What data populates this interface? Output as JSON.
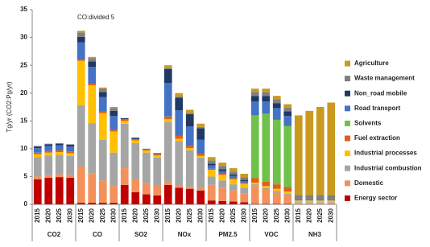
{
  "chart_data": {
    "type": "stacked_bar",
    "y_label": "Tg/yr (CO2:Pg/yr)",
    "annotation": "CO:divided 5",
    "ylim": [
      0,
      35
    ],
    "yticks": [
      0,
      5,
      10,
      15,
      20,
      25,
      30,
      35
    ],
    "groups": [
      {
        "name": "CO2",
        "categories": [
          "2015",
          "2020",
          "2025",
          "2030"
        ]
      },
      {
        "name": "CO",
        "categories": [
          "2015",
          "2020",
          "2025",
          "2030"
        ]
      },
      {
        "name": "SO2",
        "categories": [
          "2015",
          "2020",
          "2025",
          "2030"
        ]
      },
      {
        "name": "NOx",
        "categories": [
          "2015",
          "2020",
          "2025",
          "2030"
        ]
      },
      {
        "name": "PM2.5",
        "categories": [
          "2015",
          "2020",
          "2025",
          "2030"
        ]
      },
      {
        "name": "VOC",
        "categories": [
          "2015",
          "2020",
          "2025",
          "2030"
        ]
      },
      {
        "name": "NH3",
        "categories": [
          "2015",
          "2020",
          "2025",
          "2030"
        ]
      }
    ],
    "series": [
      {
        "name": "Energy sector",
        "color": "#c00000",
        "values": [
          4.5,
          4.8,
          4.9,
          4.8,
          0.3,
          0.3,
          0.3,
          0.3,
          3.5,
          2.2,
          1.8,
          1.6,
          3.5,
          3,
          2.8,
          2.5,
          0.7,
          0.6,
          0.5,
          0.4,
          0.1,
          0.1,
          0.1,
          0.1,
          0,
          0,
          0,
          0
        ]
      },
      {
        "name": "Domestic",
        "color": "#f4915a",
        "values": [
          0.5,
          0.5,
          0.5,
          0.5,
          6.5,
          5.3,
          4,
          3,
          3,
          2.3,
          2,
          1.8,
          0.5,
          0.4,
          0.4,
          0.4,
          2.8,
          2.4,
          2,
          1.6,
          3.2,
          2.5,
          2,
          1.5,
          0.3,
          0.3,
          0.3,
          0.3
        ]
      },
      {
        "name": "Industrial combustion",
        "color": "#a5a5a5",
        "values": [
          3.5,
          3.5,
          3.5,
          3.4,
          11,
          9,
          7.3,
          6,
          8,
          6.5,
          5.5,
          5,
          10.8,
          8,
          6.5,
          5.5,
          1.5,
          1.3,
          1.1,
          1,
          0.3,
          0.3,
          0.3,
          0.3,
          0.1,
          0.1,
          0.1,
          0.1
        ]
      },
      {
        "name": "Industrial processes",
        "color": "#ffc000",
        "values": [
          0.5,
          0.5,
          0.5,
          0.5,
          8,
          6.8,
          4.8,
          3.8,
          0.5,
          0.5,
          0.4,
          0.4,
          0.5,
          0.4,
          0.4,
          0.3,
          1.2,
          1,
          0.9,
          0.7,
          0.3,
          0.4,
          0.4,
          0.4,
          0.3,
          0.3,
          0.3,
          0.3
        ]
      },
      {
        "name": "Fuel extraction",
        "color": "#e0601b",
        "values": [
          0.3,
          0.3,
          0.3,
          0.3,
          0.3,
          0.3,
          0.3,
          0.3,
          0.2,
          0.2,
          0.2,
          0.2,
          0.5,
          0.5,
          0.4,
          0.4,
          0.2,
          0.2,
          0.2,
          0.2,
          0.8,
          0.8,
          0.8,
          0.8,
          0,
          0,
          0,
          0
        ]
      },
      {
        "name": "Solvents",
        "color": "#70c14a",
        "values": [
          0,
          0,
          0,
          0,
          0,
          0,
          0,
          0,
          0,
          0,
          0,
          0,
          0,
          0,
          0,
          0,
          0,
          0,
          0,
          0,
          11.3,
          12.2,
          11.6,
          11,
          0,
          0,
          0,
          0
        ]
      },
      {
        "name": "Road transport",
        "color": "#4472c4",
        "values": [
          0.8,
          0.9,
          0.9,
          0.9,
          3,
          3,
          2.6,
          2.5,
          0.1,
          0.1,
          0.1,
          0.1,
          6,
          4.6,
          3.5,
          2.5,
          0.6,
          0.5,
          0.4,
          0.3,
          2.5,
          2.2,
          2.1,
          1.8,
          0.2,
          0.2,
          0.2,
          0.2
        ]
      },
      {
        "name": "Non_road mobile",
        "color": "#203864",
        "values": [
          0.3,
          0.3,
          0.3,
          0.3,
          1,
          1,
          0.9,
          0.9,
          0.2,
          0.2,
          0,
          0.1,
          2.5,
          2.3,
          2.2,
          2.1,
          0.3,
          0.3,
          0.3,
          0.2,
          1,
          1,
          0.9,
          0.8,
          0,
          0,
          0,
          0
        ]
      },
      {
        "name": "Waste management",
        "color": "#7f7f7f",
        "values": [
          0.1,
          0.1,
          0.1,
          0.1,
          0.8,
          0.6,
          0.6,
          0.5,
          0,
          0,
          0,
          0,
          0.2,
          0.2,
          0.2,
          0.2,
          0.6,
          0.6,
          0.5,
          0.5,
          0.7,
          0.7,
          0.7,
          0.7,
          0.8,
          0.8,
          0.8,
          0.8
        ]
      },
      {
        "name": "Agriculture",
        "color": "#c99a1f",
        "values": [
          0,
          0,
          0,
          0,
          0.3,
          0.2,
          0.2,
          0.2,
          0,
          0,
          0,
          0,
          0.5,
          0.6,
          0.6,
          0.6,
          0.6,
          0.6,
          0.6,
          0.6,
          0.6,
          0.6,
          0.6,
          0.6,
          14.3,
          15.1,
          15.8,
          16.6
        ]
      }
    ]
  }
}
